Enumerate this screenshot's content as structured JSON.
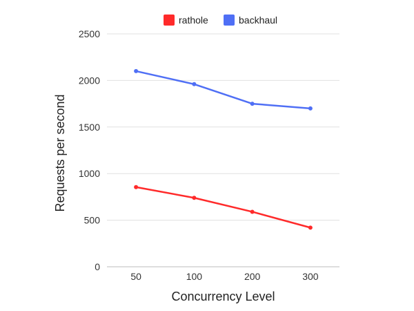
{
  "chart_data": {
    "type": "line",
    "title": "",
    "xlabel": "Concurrency Level",
    "ylabel": "Requests per second",
    "categories": [
      "50",
      "100",
      "200",
      "300"
    ],
    "ylim": [
      0,
      2500
    ],
    "yticks": [
      0,
      500,
      1000,
      1500,
      2000,
      2500
    ],
    "grid": true,
    "legend_position": "top-center",
    "series": [
      {
        "name": "rathole",
        "color": "#ff2a2a",
        "values": [
          855,
          740,
          590,
          420
        ]
      },
      {
        "name": "backhaul",
        "color": "#4f6ff5",
        "values": [
          2100,
          1960,
          1750,
          1700
        ]
      }
    ]
  }
}
